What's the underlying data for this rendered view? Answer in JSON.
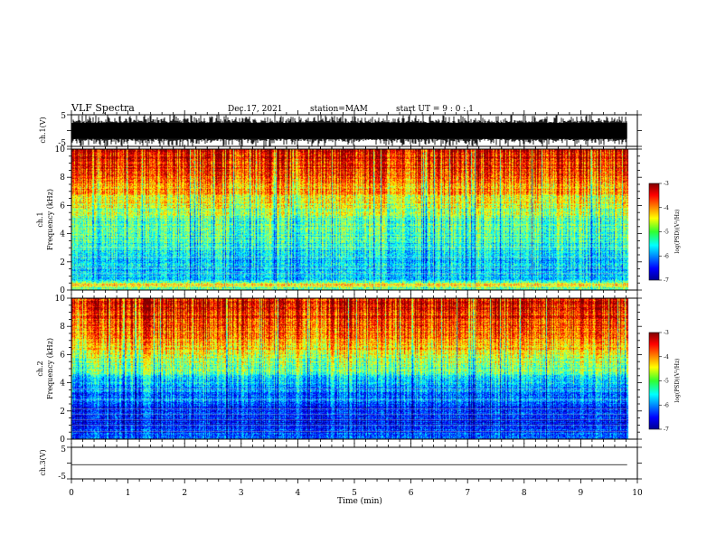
{
  "header": {
    "title": "VLF Spectra",
    "date": "Dec.17, 2021",
    "station": "station=MAM",
    "start": "start  UT  =   9 : 0  : 1"
  },
  "chart_data": [
    {
      "type": "line",
      "panel": "ch.1 waveform",
      "ylabel": "ch.1(V)",
      "ylim": [
        -5,
        5
      ],
      "yticks": [
        "5",
        "-5"
      ],
      "xlim": [
        0,
        10
      ],
      "trace": "dense black burst activity spanning 0 to 9.82 min",
      "x_extent": [
        0,
        9.82
      ]
    },
    {
      "type": "heatmap",
      "panel": "ch.1 spectrogram",
      "ylabel": "ch.1 Frequency (kHz)",
      "ylim": [
        0,
        10
      ],
      "yticks": [
        "0",
        "2",
        "4",
        "6",
        "8",
        "10"
      ],
      "xlim": [
        0,
        10
      ],
      "x_extent": [
        0,
        9.82
      ],
      "colorbar": {
        "label": "log(PSD)(V²/Hz)",
        "range": [
          -7,
          -3
        ],
        "ticks": [
          "-3",
          "-4",
          "-5",
          "-6",
          "-7"
        ]
      },
      "profile_kHz": [
        [
          0,
          -5.4
        ],
        [
          0.4,
          -4.3
        ],
        [
          0.7,
          -5.6
        ],
        [
          1.5,
          -5.7
        ],
        [
          3,
          -5.4
        ],
        [
          5,
          -5.0
        ],
        [
          6,
          -4.6
        ],
        [
          7,
          -4.2
        ],
        [
          8,
          -3.8
        ],
        [
          9,
          -3.5
        ],
        [
          10,
          -3.3
        ]
      ]
    },
    {
      "type": "heatmap",
      "panel": "ch.2 spectrogram",
      "ylabel": "ch.2 Frequency (kHz)",
      "ylim": [
        0,
        10
      ],
      "yticks": [
        "0",
        "2",
        "4",
        "6",
        "8",
        "10"
      ],
      "xlim": [
        0,
        10
      ],
      "x_extent": [
        0,
        9.82
      ],
      "colorbar": {
        "label": "log(PSD)(V²/Hz)",
        "range": [
          -7,
          -3
        ],
        "ticks": [
          "-3",
          "-4",
          "-5",
          "-6",
          "-7"
        ]
      },
      "profile_kHz": [
        [
          0,
          -6.0
        ],
        [
          1,
          -6.4
        ],
        [
          2,
          -6.3
        ],
        [
          3,
          -6.0
        ],
        [
          4,
          -5.6
        ],
        [
          5,
          -5.0
        ],
        [
          6,
          -4.5
        ],
        [
          7,
          -4.0
        ],
        [
          8,
          -3.7
        ],
        [
          9,
          -3.5
        ],
        [
          10,
          -3.3
        ]
      ]
    },
    {
      "type": "line",
      "panel": "ch.3 waveform",
      "ylabel": "ch.3(V)",
      "ylim": [
        -5,
        5
      ],
      "yticks": [
        "5",
        "-5"
      ],
      "xlim": [
        0,
        10
      ],
      "x": [
        0,
        9.82
      ],
      "y": [
        -0.5,
        -0.5
      ]
    }
  ],
  "xaxis": {
    "label": "Time (min)",
    "ticks": [
      "0",
      "1",
      "2",
      "3",
      "4",
      "5",
      "6",
      "7",
      "8",
      "9",
      "10"
    ]
  }
}
